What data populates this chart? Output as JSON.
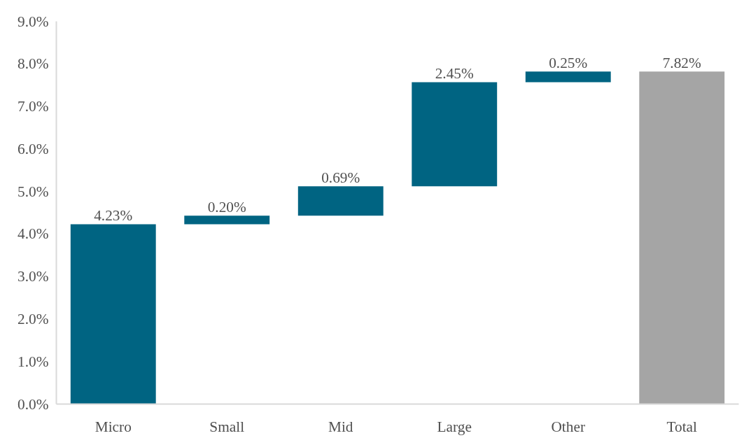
{
  "chart_data": {
    "type": "bar",
    "categories": [
      "Micro",
      "Small",
      "Mid",
      "Large",
      "Other",
      "Total"
    ],
    "values": [
      4.23,
      0.2,
      0.69,
      2.45,
      0.25,
      7.82
    ],
    "base": [
      0,
      4.23,
      4.43,
      5.12,
      7.57,
      0
    ],
    "colors": [
      "#006482",
      "#006482",
      "#006482",
      "#006482",
      "#006482",
      "#a5a5a5"
    ],
    "value_labels": [
      "4.23%",
      "0.20%",
      "0.69%",
      "2.45%",
      "0.25%",
      "7.82%"
    ],
    "ylim": [
      0,
      9
    ],
    "yticks": [
      {
        "value": 0,
        "label": "0.0%"
      },
      {
        "value": 1,
        "label": "1.0%"
      },
      {
        "value": 2,
        "label": "2.0%"
      },
      {
        "value": 3,
        "label": "3.0%"
      },
      {
        "value": 4,
        "label": "4.0%"
      },
      {
        "value": 5,
        "label": "5.0%"
      },
      {
        "value": 6,
        "label": "6.0%"
      },
      {
        "value": 7,
        "label": "7.0%"
      },
      {
        "value": 8,
        "label": "8.0%"
      },
      {
        "value": 9,
        "label": "9.0%"
      }
    ],
    "grid": false
  }
}
